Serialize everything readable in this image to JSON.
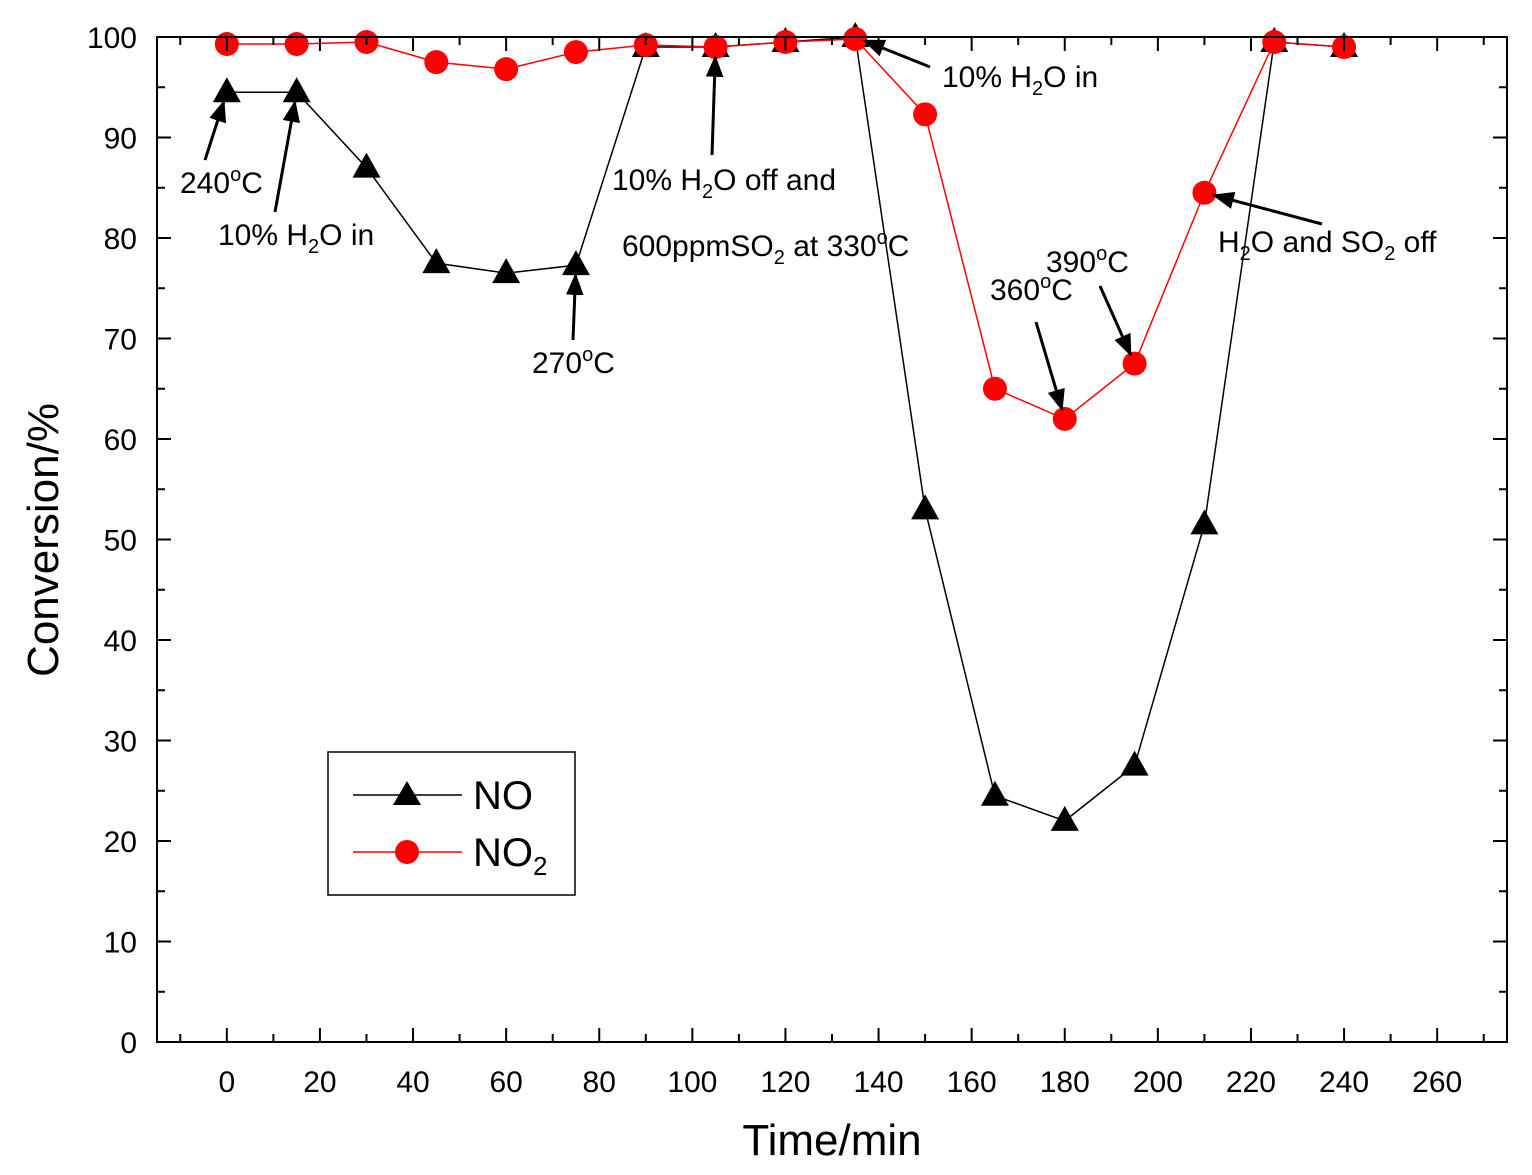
{
  "chart_data": {
    "type": "line",
    "title": "",
    "xlabel": "Time/min",
    "ylabel": "Conversion/%",
    "xlim": [
      -15,
      275
    ],
    "ylim": [
      0,
      100
    ],
    "xticks": [
      0,
      20,
      40,
      60,
      80,
      100,
      120,
      140,
      160,
      180,
      200,
      220,
      240,
      260
    ],
    "yticks": [
      0,
      10,
      20,
      30,
      40,
      50,
      60,
      70,
      80,
      90,
      100
    ],
    "grid": false,
    "legend_position": "bottom-left",
    "x": [
      0,
      15,
      30,
      45,
      60,
      75,
      90,
      105,
      120,
      135,
      150,
      165,
      180,
      195,
      210,
      225,
      240
    ],
    "series": [
      {
        "name": "NO",
        "name_main": "NO",
        "name_sub": "",
        "color": "#000000",
        "marker": "triangle",
        "values": [
          94.5,
          94.5,
          87,
          77.5,
          76.5,
          77.3,
          99,
          99,
          99.5,
          100,
          53,
          24.5,
          22,
          27.5,
          51.5,
          99.5,
          99
        ]
      },
      {
        "name": "NO2",
        "name_main": "NO",
        "name_sub": "2",
        "color": "#ff0000",
        "marker": "circle",
        "values": [
          99.3,
          99.3,
          99.5,
          97.5,
          96.8,
          98.5,
          99.2,
          99,
          99.5,
          99.8,
          92.3,
          65,
          62,
          67.5,
          84.5,
          99.5,
          99
        ]
      }
    ],
    "annotations": [
      {
        "parts": [
          {
            "t": "240"
          },
          {
            "t": "o",
            "s": "sup"
          },
          {
            "t": "C"
          }
        ],
        "arrow_to": [
          0,
          94.5
        ]
      },
      {
        "parts": [
          {
            "t": "10% H"
          },
          {
            "t": "2",
            "s": "sub"
          },
          {
            "t": "O in"
          }
        ],
        "arrow_to": [
          15,
          94.5
        ]
      },
      {
        "parts": [
          {
            "t": "270"
          },
          {
            "t": "o",
            "s": "sup"
          },
          {
            "t": "C"
          }
        ],
        "arrow_to": [
          75,
          77.3
        ]
      },
      {
        "parts": [
          {
            "t": "10% H"
          },
          {
            "t": "2",
            "s": "sub"
          },
          {
            "t": "O off and"
          }
        ],
        "arrow_to": [
          105,
          99
        ]
      },
      {
        "parts": [
          {
            "t": "600ppmSO"
          },
          {
            "t": "2",
            "s": "sub"
          },
          {
            "t": " at 330"
          },
          {
            "t": "o",
            "s": "sup"
          },
          {
            "t": "C"
          }
        ],
        "arrow_to": null
      },
      {
        "parts": [
          {
            "t": "10% H"
          },
          {
            "t": "2",
            "s": "sub"
          },
          {
            "t": "O in"
          }
        ],
        "arrow_to": [
          135,
          100
        ]
      },
      {
        "parts": [
          {
            "t": "360"
          },
          {
            "t": "o",
            "s": "sup"
          },
          {
            "t": "C"
          }
        ],
        "arrow_to": [
          180,
          62
        ]
      },
      {
        "parts": [
          {
            "t": "390"
          },
          {
            "t": "o",
            "s": "sup"
          },
          {
            "t": "C"
          }
        ],
        "arrow_to": [
          195,
          67.5
        ]
      },
      {
        "parts": [
          {
            "t": "H"
          },
          {
            "t": "2",
            "s": "sub"
          },
          {
            "t": "O and SO"
          },
          {
            "t": "2",
            "s": "sub"
          },
          {
            "t": " off"
          }
        ],
        "arrow_to": [
          210,
          84.5
        ]
      }
    ]
  }
}
